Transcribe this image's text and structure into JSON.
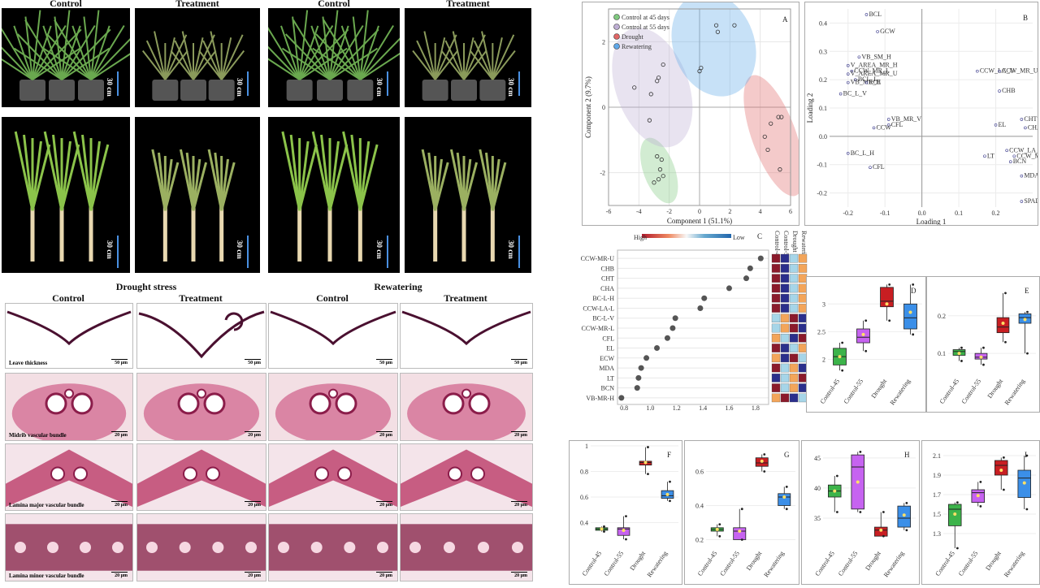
{
  "left_photos": {
    "headers": [
      "Control",
      "Treatment",
      "Control",
      "Treatment"
    ],
    "scale_label": "30 cm"
  },
  "micrographs": {
    "group_headers": [
      "Drought stress",
      "Rewatering"
    ],
    "col_headers": [
      "Control",
      "Treatment",
      "Control",
      "Treatment"
    ],
    "row_labels": [
      "Leave thickness",
      "Midrib vascular bundle",
      "Lamina major vascular bundle",
      "Lamina minor vascular bundle"
    ],
    "scales": [
      "50 μm",
      "20 μm",
      "20 μm",
      "20 μm"
    ]
  },
  "panel_A": {
    "label": "A",
    "xlabel": "Component 1 (51.1%)",
    "ylabel": "Component 2 (9.7%)",
    "legend": [
      {
        "name": "Control at 45 days",
        "color": "#7fc97f"
      },
      {
        "name": "Control at 55 days",
        "color": "#beaed4"
      },
      {
        "name": "Drought",
        "color": "#e06666"
      },
      {
        "name": "Rewatering",
        "color": "#5fa8e8"
      }
    ]
  },
  "panel_B": {
    "label": "B",
    "xlabel": "Loading 1",
    "ylabel": "Loading 2"
  },
  "panel_C": {
    "label": "C",
    "xlabel": "VIP score",
    "legend_high": "High",
    "legend_low": "Low",
    "col_headers": [
      "Control-45",
      "Control-55",
      "Drought",
      "Rewatering"
    ]
  },
  "chart_data": [
    {
      "type": "scatter",
      "panel": "A",
      "xlim": [
        -6,
        6
      ],
      "ylim": [
        -3,
        3
      ],
      "xticks": [
        -6,
        -4,
        -2,
        0,
        2,
        4,
        6
      ],
      "yticks": [
        -2,
        0,
        2
      ],
      "series": [
        {
          "name": "Control at 45 days",
          "color": "#7fc97f",
          "points": [
            [
              -2.8,
              -1.5
            ],
            [
              -2.5,
              -1.6
            ],
            [
              -2.6,
              -1.9
            ],
            [
              -2.4,
              -2.1
            ],
            [
              -3.0,
              -2.3
            ],
            [
              -2.7,
              -2.2
            ]
          ]
        },
        {
          "name": "Control at 55 days",
          "color": "#beaed4",
          "points": [
            [
              -2.4,
              1.3
            ],
            [
              -2.7,
              0.9
            ],
            [
              -2.8,
              0.8
            ],
            [
              -3.2,
              0.4
            ],
            [
              -4.3,
              0.6
            ],
            [
              -3.3,
              -0.4
            ]
          ]
        },
        {
          "name": "Drought",
          "color": "#e06666",
          "points": [
            [
              5.2,
              -0.3
            ],
            [
              5.4,
              -0.3
            ],
            [
              4.7,
              -0.5
            ],
            [
              4.3,
              -0.9
            ],
            [
              5.3,
              -1.9
            ],
            [
              4.5,
              -1.3
            ]
          ]
        },
        {
          "name": "Rewatering",
          "color": "#5fa8e8",
          "points": [
            [
              1.1,
              2.5
            ],
            [
              2.3,
              2.5
            ],
            [
              1.2,
              2.3
            ],
            [
              0.1,
              1.2
            ],
            [
              0.0,
              1.1
            ]
          ]
        }
      ]
    },
    {
      "type": "scatter",
      "panel": "B",
      "xlim": [
        -0.25,
        0.3
      ],
      "ylim": [
        -0.25,
        0.45
      ],
      "xticks": [
        -0.2,
        -0.1,
        0.0,
        0.1,
        0.2
      ],
      "yticks": [
        -0.2,
        -0.1,
        0.0,
        0.1,
        0.2,
        0.3,
        0.4
      ],
      "points": [
        {
          "label": "BCL",
          "x": -0.15,
          "y": 0.43
        },
        {
          "label": "GCW",
          "x": -0.12,
          "y": 0.37
        },
        {
          "label": "VB_SM_H",
          "x": -0.17,
          "y": 0.28
        },
        {
          "label": "V_AREA_MR_H",
          "x": -0.2,
          "y": 0.25
        },
        {
          "label": "CCW_MR_L",
          "x": -0.19,
          "y": 0.23
        },
        {
          "label": "V_AREA_MR_U",
          "x": -0.2,
          "y": 0.22
        },
        {
          "label": "BCL_L",
          "x": -0.18,
          "y": 0.2
        },
        {
          "label": "VB_MR_H",
          "x": -0.2,
          "y": 0.19
        },
        {
          "label": "ECL",
          "x": -0.15,
          "y": 0.19
        },
        {
          "label": "BC_L_V",
          "x": -0.22,
          "y": 0.15
        },
        {
          "label": "CCW_LA_U",
          "x": 0.15,
          "y": 0.23
        },
        {
          "label": "CCW_MR_U",
          "x": 0.21,
          "y": 0.23
        },
        {
          "label": "CHB",
          "x": 0.21,
          "y": 0.16
        },
        {
          "label": "VB_MR_V",
          "x": -0.09,
          "y": 0.06
        },
        {
          "label": "CFL",
          "x": -0.09,
          "y": 0.04
        },
        {
          "label": "CCW",
          "x": -0.13,
          "y": 0.03
        },
        {
          "label": "CHT",
          "x": 0.27,
          "y": 0.06
        },
        {
          "label": "EL",
          "x": 0.2,
          "y": 0.04
        },
        {
          "label": "CHA",
          "x": 0.28,
          "y": 0.03
        },
        {
          "label": "CCW_LA_L",
          "x": 0.23,
          "y": -0.05
        },
        {
          "label": "CCW_MR_L",
          "x": 0.25,
          "y": -0.07
        },
        {
          "label": "LT",
          "x": 0.17,
          "y": -0.07
        },
        {
          "label": "BCN",
          "x": 0.24,
          "y": -0.09
        },
        {
          "label": "BC_L_H",
          "x": -0.2,
          "y": -0.06
        },
        {
          "label": "CFL",
          "x": -0.14,
          "y": -0.11
        },
        {
          "label": "MDA",
          "x": 0.27,
          "y": -0.14
        },
        {
          "label": "SPAD",
          "x": 0.27,
          "y": -0.23
        }
      ]
    },
    {
      "type": "scatter",
      "panel": "C",
      "xlim": [
        0.75,
        1.9
      ],
      "xticks": [
        0.8,
        1.0,
        1.2,
        1.4,
        1.6,
        1.8
      ],
      "categories": [
        "CCW-MR-U",
        "CHB",
        "CHT",
        "CHA",
        "BC-L-H",
        "CCW-LA-L",
        "BC-L-V",
        "CCW-MR-L",
        "CFL",
        "EL",
        "ECW",
        "MDA",
        "LT",
        "BCN",
        "VB-MR-H"
      ],
      "values": [
        1.84,
        1.76,
        1.73,
        1.6,
        1.41,
        1.38,
        1.19,
        1.17,
        1.13,
        1.05,
        0.97,
        0.93,
        0.91,
        0.9,
        0.78
      ],
      "heat": [
        [
          1,
          2,
          3,
          4
        ],
        [
          1,
          2,
          3,
          4
        ],
        [
          1,
          2,
          3,
          4
        ],
        [
          1,
          2,
          3,
          4
        ],
        [
          1,
          2,
          3,
          4
        ],
        [
          1,
          2,
          3,
          4
        ],
        [
          3,
          4,
          1,
          2
        ],
        [
          3,
          4,
          1,
          2
        ],
        [
          4,
          3,
          2,
          1
        ],
        [
          1,
          2,
          3,
          4
        ],
        [
          4,
          2,
          1,
          3
        ],
        [
          1,
          3,
          4,
          2
        ],
        [
          2,
          3,
          4,
          1
        ],
        [
          1,
          3,
          4,
          2
        ],
        [
          4,
          1,
          2,
          3
        ]
      ]
    },
    {
      "type": "box",
      "panel": "D",
      "label": "D",
      "categories": [
        "Control-45",
        "Control-55",
        "Drought",
        "Rewatering"
      ],
      "ylim": [
        1.7,
        3.4
      ],
      "yticks": [
        2.0,
        2.5,
        3.0
      ],
      "boxes": [
        {
          "min": 1.8,
          "q1": 1.9,
          "med": 2.05,
          "q3": 2.2,
          "max": 2.3,
          "mean": 2.05
        },
        {
          "min": 2.15,
          "q1": 2.3,
          "med": 2.4,
          "q3": 2.55,
          "max": 2.7,
          "mean": 2.45
        },
        {
          "min": 2.7,
          "q1": 2.95,
          "med": 3.05,
          "q3": 3.3,
          "max": 3.35,
          "mean": 3.0
        },
        {
          "min": 2.45,
          "q1": 2.55,
          "med": 2.75,
          "q3": 3.0,
          "max": 3.35,
          "mean": 2.85
        }
      ]
    },
    {
      "type": "box",
      "panel": "E",
      "label": "E",
      "categories": [
        "Control-45",
        "Control-55",
        "Drought",
        "Rewatering"
      ],
      "ylim": [
        0.04,
        0.29
      ],
      "yticks": [
        0.1,
        0.2
      ],
      "boxes": [
        {
          "min": 0.08,
          "q1": 0.095,
          "med": 0.105,
          "q3": 0.11,
          "max": 0.115,
          "mean": 0.1
        },
        {
          "min": 0.07,
          "q1": 0.085,
          "med": 0.09,
          "q3": 0.1,
          "max": 0.115,
          "mean": 0.09
        },
        {
          "min": 0.13,
          "q1": 0.155,
          "med": 0.17,
          "q3": 0.195,
          "max": 0.26,
          "mean": 0.18
        },
        {
          "min": 0.1,
          "q1": 0.18,
          "med": 0.195,
          "q3": 0.205,
          "max": 0.21,
          "mean": 0.19
        }
      ]
    },
    {
      "type": "box",
      "panel": "F",
      "label": "F",
      "categories": [
        "Control-45",
        "Control-55",
        "Drought",
        "Rewatering"
      ],
      "ylim": [
        0.2,
        1.0
      ],
      "yticks": [
        0.4,
        0.6,
        0.8,
        1.0
      ],
      "boxes": [
        {
          "min": 0.33,
          "q1": 0.34,
          "med": 0.35,
          "q3": 0.36,
          "max": 0.37,
          "mean": 0.35
        },
        {
          "min": 0.27,
          "q1": 0.3,
          "med": 0.35,
          "q3": 0.36,
          "max": 0.45,
          "mean": 0.34
        },
        {
          "min": 0.78,
          "q1": 0.85,
          "med": 0.87,
          "q3": 0.88,
          "max": 0.99,
          "mean": 0.87
        },
        {
          "min": 0.57,
          "q1": 0.59,
          "med": 0.61,
          "q3": 0.65,
          "max": 0.72,
          "mean": 0.62
        }
      ]
    },
    {
      "type": "box",
      "panel": "G",
      "label": "G",
      "categories": [
        "Control-45",
        "Control-55",
        "Drought",
        "Rewatering"
      ],
      "ylim": [
        0.15,
        0.75
      ],
      "yticks": [
        0.2,
        0.4,
        0.6
      ],
      "boxes": [
        {
          "min": 0.22,
          "q1": 0.25,
          "med": 0.26,
          "q3": 0.27,
          "max": 0.29,
          "mean": 0.26
        },
        {
          "min": 0.2,
          "q1": 0.2,
          "med": 0.25,
          "q3": 0.27,
          "max": 0.38,
          "mean": 0.25
        },
        {
          "min": 0.6,
          "q1": 0.63,
          "med": 0.65,
          "q3": 0.68,
          "max": 0.7,
          "mean": 0.66
        },
        {
          "min": 0.38,
          "q1": 0.4,
          "med": 0.45,
          "q3": 0.47,
          "max": 0.51,
          "mean": 0.45
        }
      ]
    },
    {
      "type": "box",
      "panel": "H",
      "label": "H",
      "categories": [
        "Control-45",
        "Control-55",
        "Drought",
        "Rewatering"
      ],
      "ylim": [
        30,
        47
      ],
      "yticks": [
        35,
        40,
        45
      ],
      "boxes": [
        {
          "min": 36,
          "q1": 38.5,
          "med": 39.5,
          "q3": 40.5,
          "max": 42,
          "mean": 39.5
        },
        {
          "min": 36,
          "q1": 36.5,
          "med": 43.5,
          "q3": 45.5,
          "max": 46,
          "mean": 41
        },
        {
          "min": 32,
          "q1": 32,
          "med": 33,
          "q3": 33.5,
          "max": 36,
          "mean": 33
        },
        {
          "min": 33,
          "q1": 33.5,
          "med": 35,
          "q3": 37,
          "max": 37.5,
          "mean": 35.5
        }
      ]
    },
    {
      "type": "box",
      "panel": "I",
      "label": "I",
      "categories": [
        "Control-45",
        "Control-55",
        "Drought",
        "Rewatering"
      ],
      "ylim": [
        1.15,
        2.2
      ],
      "yticks": [
        1.3,
        1.5,
        1.7,
        1.9,
        2.1
      ],
      "boxes": [
        {
          "min": 1.15,
          "q1": 1.38,
          "med": 1.55,
          "q3": 1.6,
          "max": 1.62,
          "mean": 1.5
        },
        {
          "min": 1.58,
          "q1": 1.62,
          "med": 1.72,
          "q3": 1.75,
          "max": 1.83,
          "mean": 1.69
        },
        {
          "min": 1.75,
          "q1": 1.9,
          "med": 2.0,
          "q3": 2.05,
          "max": 2.08,
          "mean": 1.95
        },
        {
          "min": 1.55,
          "q1": 1.67,
          "med": 1.87,
          "q3": 1.95,
          "max": 2.1,
          "mean": 1.82
        }
      ]
    }
  ]
}
